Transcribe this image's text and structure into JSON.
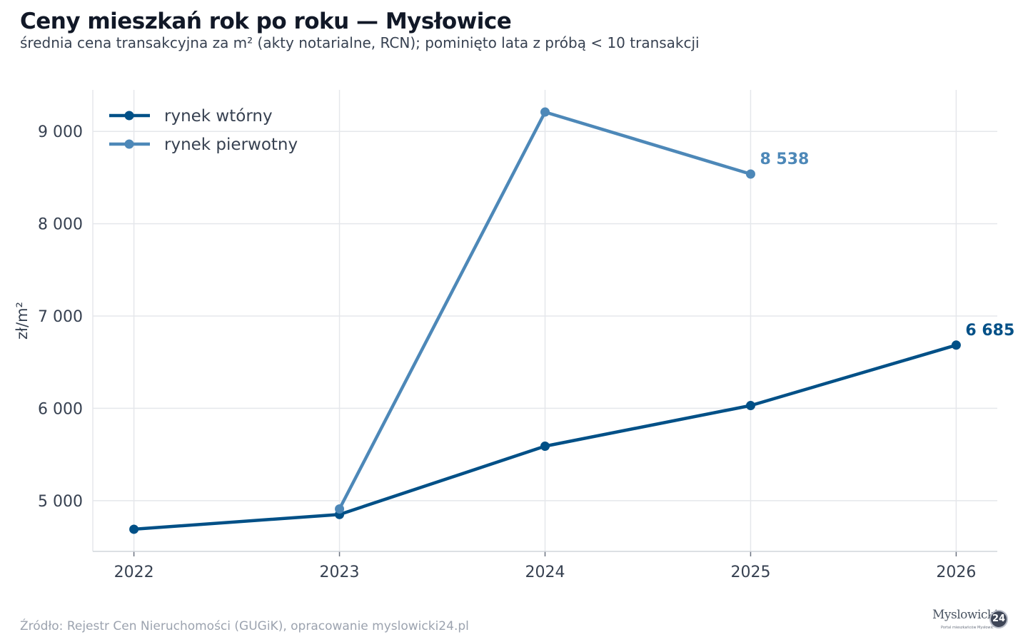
{
  "header": {
    "title": "Ceny mieszkań rok po roku — Mysłowice",
    "subtitle": "średnia cena transakcyjna za m² (akty notarialne, RCN); pominięto lata z próbą < 10 transakcji"
  },
  "footer": {
    "source": "Źródło: Rejestr Cen Nieruchomości (GUGiK), opracowanie myslowicki24.pl"
  },
  "logo": {
    "text": "Myslowicki",
    "badge": "24",
    "tagline": "Portal mieszkańców Mysłowic"
  },
  "chart_data": {
    "type": "line",
    "x": [
      2022,
      2023,
      2024,
      2025,
      2026
    ],
    "xlim": [
      2021.8,
      2026.2
    ],
    "ylim": [
      4450,
      9450
    ],
    "yticks": [
      5000,
      6000,
      7000,
      8000,
      9000
    ],
    "ytick_labels": [
      "5 000",
      "6 000",
      "7 000",
      "8 000",
      "9 000"
    ],
    "xtick_labels": [
      "2022",
      "2023",
      "2024",
      "2025",
      "2026"
    ],
    "ylabel": "zł/m²",
    "xlabel": "",
    "grid": true,
    "legend_position": "top-left",
    "series": [
      {
        "name": "rynek wtórny",
        "color": "#005087",
        "x": [
          2022,
          2023,
          2024,
          2025,
          2026
        ],
        "values": [
          4690,
          4850,
          5590,
          6030,
          6685
        ],
        "end_label": "6 685"
      },
      {
        "name": "rynek pierwotny",
        "color": "#4d88b8",
        "x": [
          2023,
          2024,
          2025
        ],
        "values": [
          4910,
          9210,
          8538
        ],
        "end_label": "8 538"
      }
    ]
  }
}
